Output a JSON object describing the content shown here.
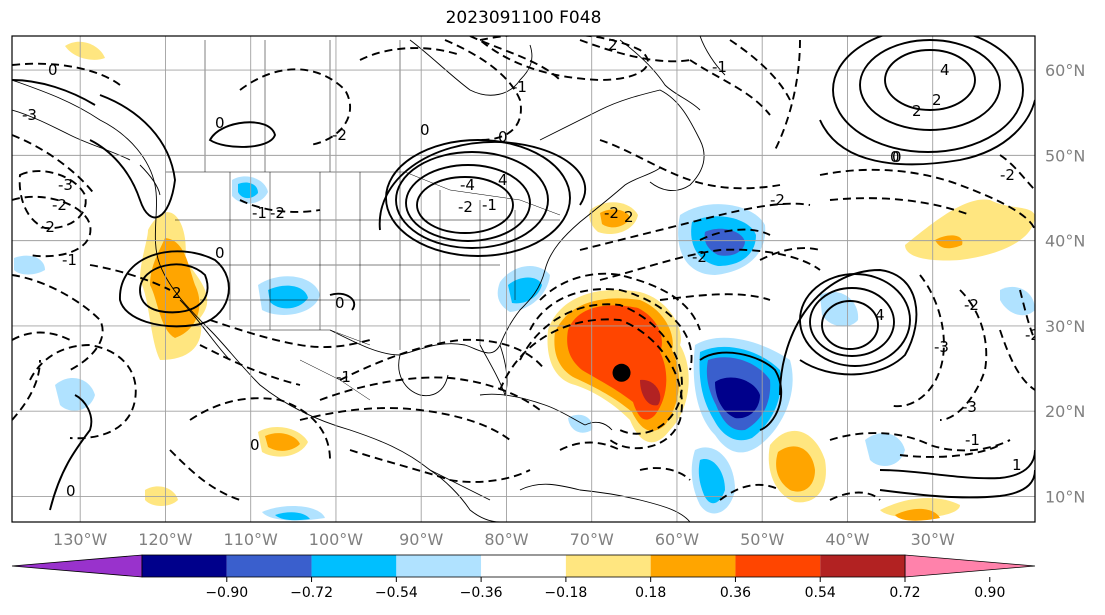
{
  "title": "2023091100 F048",
  "map": {
    "lat_labels": [
      "60°N",
      "50°N",
      "40°N",
      "30°N",
      "20°N",
      "10°N"
    ],
    "lat_values": [
      60,
      50,
      40,
      30,
      20,
      10
    ],
    "lon_labels": [
      "130°W",
      "120°W",
      "110°W",
      "100°W",
      "90°W",
      "80°W",
      "70°W",
      "60°W",
      "50°W",
      "40°W",
      "30°W"
    ],
    "lon_values": [
      -130,
      -120,
      -110,
      -100,
      -90,
      -80,
      -70,
      -60,
      -50,
      -40,
      -30
    ],
    "extent": {
      "lon_min": -138,
      "lon_max": -18,
      "lat_min": 7,
      "lat_max": 64
    },
    "storm_center": {
      "lon": -66.5,
      "lat": 24.5
    },
    "contour_labels": [
      "-2",
      "0",
      "-1",
      "-3",
      "2",
      "4",
      "-2",
      "0",
      "-1",
      "0",
      "-2",
      "-2",
      "2",
      "0",
      "-2",
      "-4",
      "2",
      "-3",
      "4",
      "0",
      "-1",
      "-2",
      "-1",
      "2",
      "0",
      "0",
      "-2",
      "1",
      "-1",
      "-3",
      "2",
      "-2",
      "-2",
      "-2",
      "-1",
      "0",
      "0",
      "-1",
      "-2",
      "0",
      "4",
      "-3"
    ]
  },
  "colorbar": {
    "tick_labels": [
      "−0.90",
      "−0.72",
      "−0.54",
      "−0.36",
      "−0.18",
      "0.18",
      "0.36",
      "0.54",
      "0.72",
      "0.90"
    ],
    "colors": [
      "#9932cc",
      "#00008b",
      "#3a5fcd",
      "#00bfff",
      "#b0e2ff",
      "#ffffff",
      "#ffe680",
      "#ffa500",
      "#ff4500",
      "#b22222",
      "#ff82ab"
    ]
  }
}
